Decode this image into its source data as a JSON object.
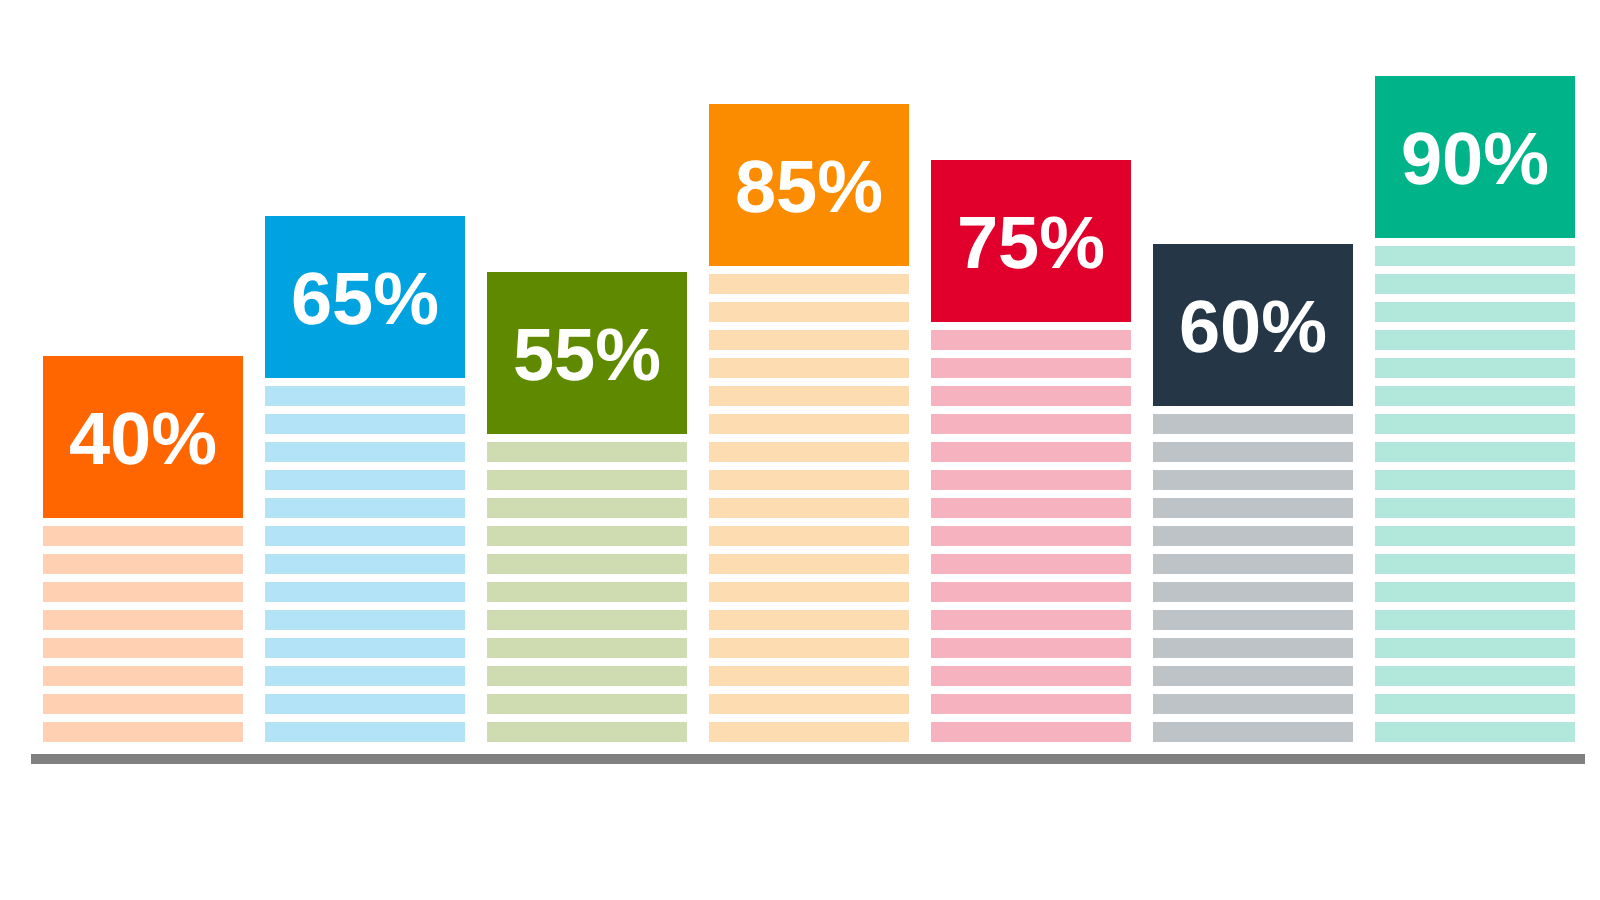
{
  "chart_data": {
    "type": "bar",
    "categories": [
      null,
      null,
      null,
      null,
      null,
      null,
      null
    ],
    "values": [
      40,
      65,
      55,
      85,
      75,
      60,
      90
    ],
    "colors": [
      "#ff6600",
      "#00a3e0",
      "#5f8a00",
      "#fb8c00",
      "#e0002b",
      "#253746",
      "#00b388"
    ],
    "value_labels": [
      "40%",
      "65%",
      "55%",
      "85%",
      "75%",
      "60%",
      "90%"
    ]
  }
}
